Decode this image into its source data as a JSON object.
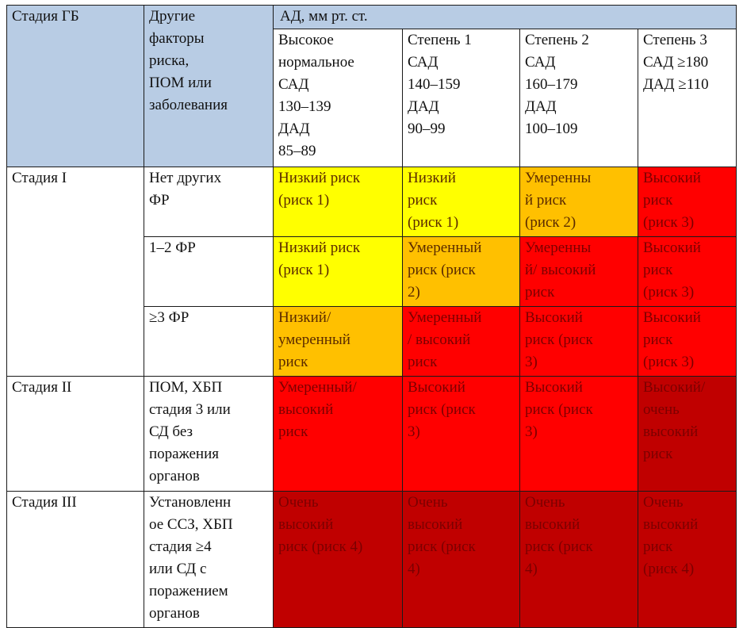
{
  "table": {
    "headers": {
      "stage": "Стадия ГБ",
      "factors": "Другие\nфакторы\nриска,\nПОМ        или\nзаболевания",
      "bp": "АД, мм рт. ст."
    },
    "bp_columns": [
      "Высокое\nнормальное\nСАД\n130–139\nДАД\n85–89",
      "Степень 1\nСАД\n140–159\nДАД\n90–99",
      "Степень 2\nСАД\n160–179\nДАД\n100–109",
      "Степень 3\nСАД ≥180\nДАД ≥110"
    ],
    "stages": [
      {
        "name": "Стадия I"
      },
      {
        "name": "Стадия II"
      },
      {
        "name": "Стадия III"
      }
    ],
    "rows": [
      {
        "factors": "Нет     других\nФР",
        "cells": [
          {
            "text": "Низкий риск\n(риск 1)",
            "level": "low"
          },
          {
            "text": "Низкий\nриск\n(риск 1)",
            "level": "low"
          },
          {
            "text": "Умеренны\nй        риск\n(риск 2)",
            "level": "moderate"
          },
          {
            "text": "Высокий\nриск\n(риск 3)",
            "level": "high"
          }
        ]
      },
      {
        "factors": "1–2 ФР",
        "cells": [
          {
            "text": "Низкий риск\n(риск 1)",
            "level": "low"
          },
          {
            "text": "Умеренный\nриск  (риск\n2)",
            "level": "moderate"
          },
          {
            "text": "Умеренны\nй/  высокий\nриск",
            "level": "high"
          },
          {
            "text": "Высокий\nриск\n(риск 3)",
            "level": "high"
          }
        ]
      },
      {
        "factors": "≥3 ФР",
        "cells": [
          {
            "text": "Низкий/\nумеренный\nриск",
            "level": "moderate"
          },
          {
            "text": "Умеренный\n/    высокий\nриск",
            "level": "high"
          },
          {
            "text": "Высокий\nриск  (риск\n3)",
            "level": "high"
          },
          {
            "text": "Высокий\nриск\n(риск 3)",
            "level": "high"
          }
        ]
      },
      {
        "factors": "ПОМ,    ХБП\nстадия 3 или\nСД           без\nпоражения\nорганов",
        "cells": [
          {
            "text": "Умеренный/\nвысокий\nриск",
            "level": "high"
          },
          {
            "text": "Высокий\nриск  (риск\n3)",
            "level": "high"
          },
          {
            "text": "Высокий\nриск  (риск\n3)",
            "level": "high"
          },
          {
            "text": "Высокий/\nочень\nвысокий\nриск",
            "level": "very_high"
          }
        ]
      },
      {
        "factors": "Установленн\nое ССЗ, ХБП\nстадия       ≥4\nили   СД    с\nпоражением\nорганов",
        "cells": [
          {
            "text": "Очень\nвысокий\nриск (риск 4)",
            "level": "very_high"
          },
          {
            "text": "Очень\nвысокий\nриск  (риск\n4)",
            "level": "very_high"
          },
          {
            "text": "Очень\nвысокий\nриск   (риск\n4)",
            "level": "very_high"
          },
          {
            "text": "Очень\nвысокий\nриск\n(риск 4)",
            "level": "very_high"
          }
        ]
      }
    ]
  },
  "colors": {
    "header_bg": "#b8cce4",
    "low": "#ffff00",
    "moderate": "#ffc000",
    "high": "#ff0000",
    "very_high": "#c00000"
  }
}
